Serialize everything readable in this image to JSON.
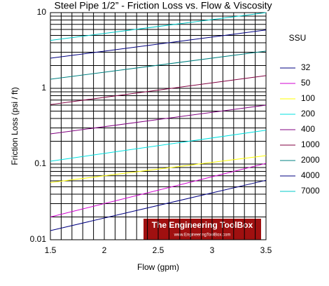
{
  "chart_data": {
    "type": "line",
    "title": "Steel Pipe 1/2” - Friction Loss vs. Flow & Viscosity",
    "x_label": "Flow (gpm)",
    "y_label": "Friction Loss (psi / ft)",
    "legend_title": "SSU",
    "watermark": "The Engineering ToolBox",
    "watermark_sub": "www.EngineeringToolBox.com",
    "x": [
      1.5,
      3.5
    ],
    "xlim": [
      1.5,
      3.5
    ],
    "xticks": [
      1.5,
      2,
      2.5,
      3,
      3.5
    ],
    "ylim": [
      0.01,
      10
    ],
    "yticks": [
      0.01,
      0.1,
      1,
      10
    ],
    "y_log": true,
    "grid": true,
    "minor_grid": true,
    "legend": "right",
    "series": [
      {
        "name": "32",
        "color": "#000080",
        "values": [
          0.0132,
          0.061
        ]
      },
      {
        "name": "50",
        "color": "#d000d0",
        "values": [
          0.02,
          0.102
        ]
      },
      {
        "name": "100",
        "color": "#ffff00",
        "values": [
          0.057,
          0.129
        ]
      },
      {
        "name": "200",
        "color": "#00e0e0",
        "values": [
          0.109,
          0.28
        ]
      },
      {
        "name": "400",
        "color": "#800080",
        "values": [
          0.25,
          0.6
        ]
      },
      {
        "name": "1000",
        "color": "#800040",
        "values": [
          0.61,
          1.47
        ]
      },
      {
        "name": "2000",
        "color": "#008080",
        "values": [
          1.32,
          3.1
        ]
      },
      {
        "name": "4000",
        "color": "#000080",
        "values": [
          2.5,
          5.9
        ]
      },
      {
        "name": "7000",
        "color": "#00c8c8",
        "values": [
          4.3,
          10
        ]
      }
    ]
  }
}
